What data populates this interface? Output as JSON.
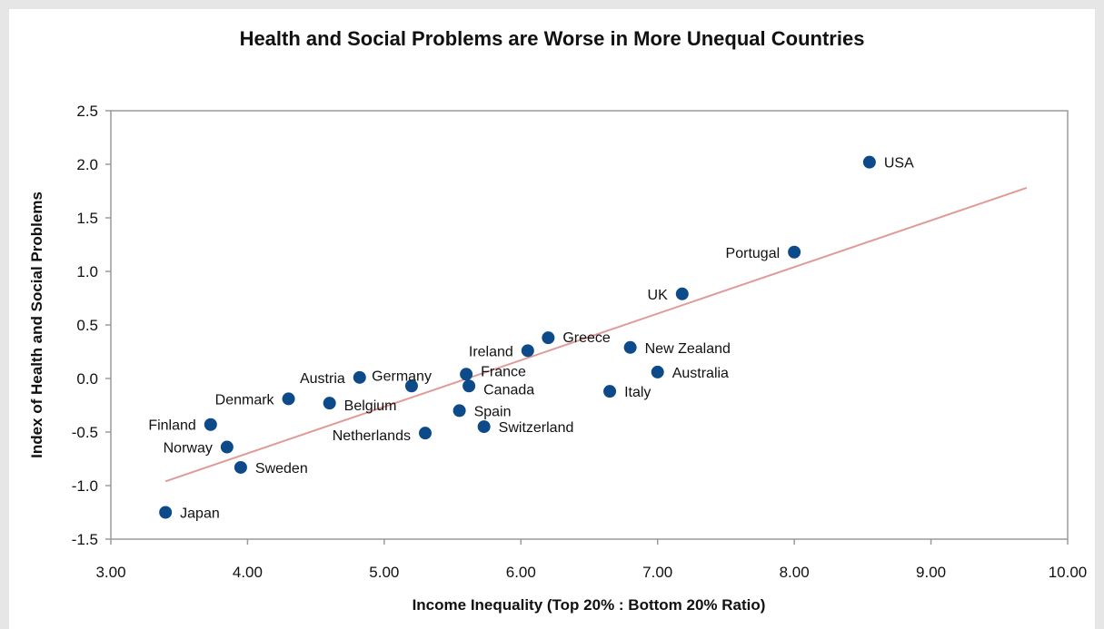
{
  "chart_data": {
    "type": "scatter",
    "title": "Health and Social Problems are Worse in More Unequal Countries",
    "xlabel": "Income Inequality (Top 20% : Bottom 20% Ratio)",
    "ylabel": "Index of Health and Social Problems",
    "xlim": [
      3.0,
      10.0
    ],
    "ylim": [
      -1.5,
      2.5
    ],
    "x_ticks": [
      "3.00",
      "4.00",
      "5.00",
      "6.00",
      "7.00",
      "8.00",
      "9.00",
      "10.00"
    ],
    "y_ticks": [
      "2.5",
      "2.0",
      "1.5",
      "1.0",
      "0.5",
      "0.0",
      "-0.5",
      "-1.0",
      "-1.5"
    ],
    "grid": false,
    "point_color": "#0d4a8a",
    "trendline": {
      "color": "#e09a9a",
      "x": [
        3.4,
        9.7
      ],
      "y": [
        -0.96,
        1.78
      ]
    },
    "points": [
      {
        "label": "USA",
        "x": 8.55,
        "y": 2.02
      },
      {
        "label": "Portugal",
        "x": 8.0,
        "y": 1.18
      },
      {
        "label": "UK",
        "x": 7.18,
        "y": 0.79
      },
      {
        "label": "Greece",
        "x": 6.2,
        "y": 0.38
      },
      {
        "label": "Ireland",
        "x": 6.05,
        "y": 0.26
      },
      {
        "label": "New Zealand",
        "x": 6.8,
        "y": 0.29
      },
      {
        "label": "Australia",
        "x": 7.0,
        "y": 0.06
      },
      {
        "label": "Germany",
        "x": 5.2,
        "y": -0.07
      },
      {
        "label": "France",
        "x": 5.6,
        "y": 0.04
      },
      {
        "label": "Canada",
        "x": 5.62,
        "y": -0.07
      },
      {
        "label": "Austria",
        "x": 4.82,
        "y": 0.01
      },
      {
        "label": "Italy",
        "x": 6.65,
        "y": -0.12
      },
      {
        "label": "Denmark",
        "x": 4.3,
        "y": -0.19
      },
      {
        "label": "Belgium",
        "x": 4.6,
        "y": -0.23
      },
      {
        "label": "Spain",
        "x": 5.55,
        "y": -0.3
      },
      {
        "label": "Switzerland",
        "x": 5.73,
        "y": -0.45
      },
      {
        "label": "Finland",
        "x": 3.73,
        "y": -0.43
      },
      {
        "label": "Netherlands",
        "x": 5.3,
        "y": -0.51
      },
      {
        "label": "Norway",
        "x": 3.85,
        "y": -0.64
      },
      {
        "label": "Sweden",
        "x": 3.95,
        "y": -0.83
      },
      {
        "label": "Japan",
        "x": 3.4,
        "y": -1.25
      }
    ]
  }
}
